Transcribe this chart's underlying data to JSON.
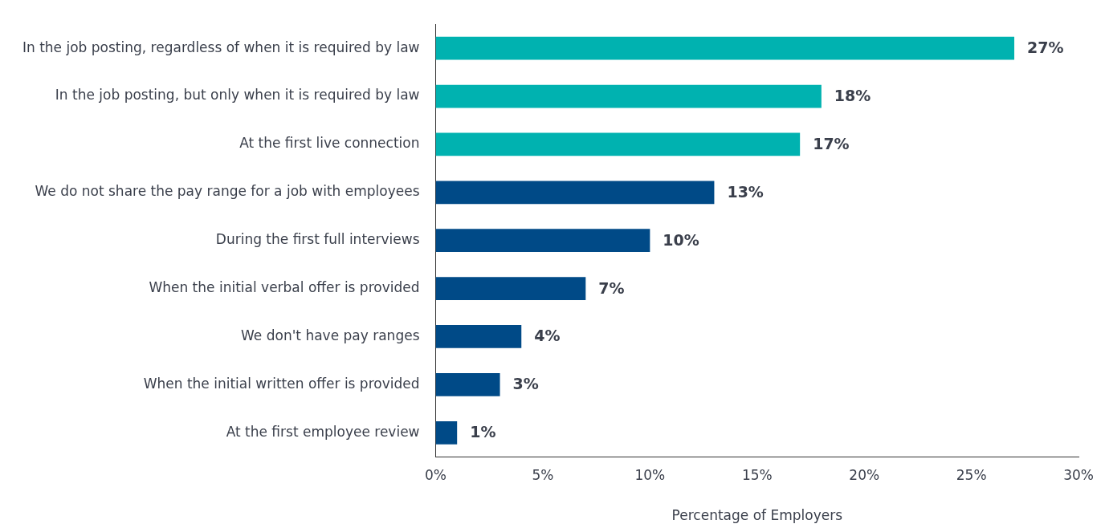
{
  "chart_data": {
    "type": "bar",
    "orientation": "horizontal",
    "xlabel": "Percentage of Employers",
    "categories": [
      "In the job posting, regardless of when it is required by law",
      "In the job posting, but only when it is required by law",
      "At the first live connection",
      "We do not share the pay range for a job with employees",
      "During the first full interviews",
      "When the initial verbal offer is provided",
      "We don't have pay ranges",
      "When the initial written offer is provided",
      "At the first employee review"
    ],
    "values": [
      27,
      18,
      17,
      13,
      10,
      7,
      4,
      3,
      1
    ],
    "colors": [
      "#00b2b0",
      "#00b2b0",
      "#00b2b0",
      "#004a87",
      "#004a87",
      "#004a87",
      "#004a87",
      "#004a87",
      "#004a87"
    ],
    "value_labels": [
      "27%",
      "18%",
      "17%",
      "13%",
      "10%",
      "7%",
      "4%",
      "3%",
      "1%"
    ],
    "xlim": [
      0,
      30
    ],
    "xticks": [
      {
        "value": 0,
        "label": "0%"
      },
      {
        "value": 5,
        "label": "5%"
      },
      {
        "value": 10,
        "label": "10%"
      },
      {
        "value": 15,
        "label": "15%"
      },
      {
        "value": 20,
        "label": "20%"
      },
      {
        "value": 25,
        "label": "25%"
      },
      {
        "value": 30,
        "label": "30%"
      }
    ],
    "grid": false,
    "legend": false
  }
}
